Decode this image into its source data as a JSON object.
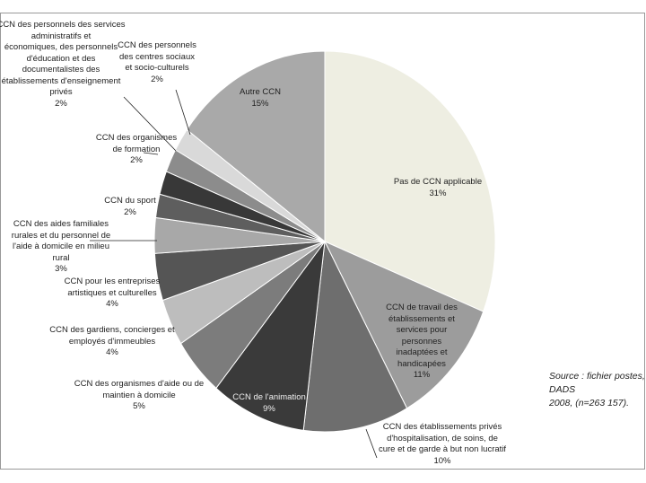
{
  "chart_data": {
    "type": "pie",
    "categories": [
      "Pas de CCN  applicable",
      "CCN de travail des\nétablissements et\nservices pour\npersonnes\ninadaptées et\nhandicapées",
      "CCN des établissements privés\nd'hospitalisation, de soins, de\ncure et de garde à but non lucratif",
      "CCN de l'animation",
      "CCN des organismes d'aide ou de\nmaintien à domicile",
      "CCN des gardiens, concierges et\nemployés d'immeubles",
      "CCN pour les entreprises\nartistiques et culturelles",
      "CCN des aides familiales\nrurales et du personnel de\nl'aide à domicile en milieu\nrural",
      "CCN du sport",
      "CCN des organismes\nde formation",
      "CCN des personnels des services\nadministratifs et\néconomiques, des personnels\nd'éducation et des\ndocumentalistes des\nétablissements d'enseignement\nprivés",
      "CCN des personnels\ndes centres sociaux\net socio-culturels",
      "Autre CCN"
    ],
    "values": [
      31,
      11,
      10,
      9,
      5,
      4,
      4,
      3,
      2,
      2,
      2,
      2,
      15
    ],
    "value_labels": [
      "31%",
      "11%",
      "10%",
      "9%",
      "5%",
      "4%",
      "4%",
      "3%",
      "2%",
      "2%",
      "2%",
      "2%",
      "15%"
    ],
    "colors": [
      "#eeeee2",
      "#9c9c9c",
      "#6e6e6e",
      "#3a3a3a",
      "#7c7c7c",
      "#bdbdbd",
      "#555555",
      "#a8a8a8",
      "#5e5e5e",
      "#383838",
      "#8c8c8c",
      "#d9d9d9",
      "#a9a9a9"
    ],
    "annotation": "Source : fichier postes, DADS\n2008, (n=263 157)."
  }
}
